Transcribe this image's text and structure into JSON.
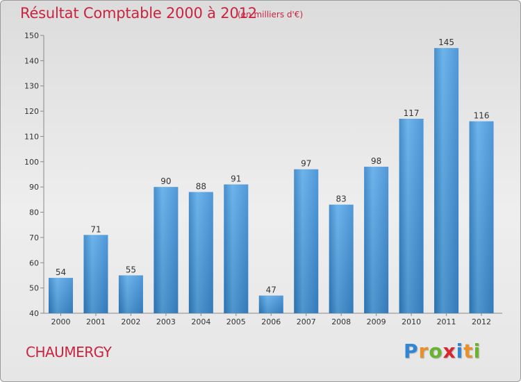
{
  "chart_data": {
    "type": "bar",
    "title": "Résultat Comptable 2000 à 2012",
    "subtitle": "(en milliers d'€)",
    "categories": [
      "2000",
      "2001",
      "2002",
      "2003",
      "2004",
      "2005",
      "2006",
      "2007",
      "2008",
      "2009",
      "2010",
      "2011",
      "2012"
    ],
    "values": [
      54,
      71,
      55,
      90,
      88,
      91,
      47,
      97,
      83,
      98,
      117,
      145,
      116
    ],
    "ylim": [
      40,
      150
    ],
    "yticks": [
      40,
      50,
      60,
      70,
      80,
      90,
      100,
      110,
      120,
      130,
      140,
      150
    ],
    "grid": false,
    "bar_color": "#3d8fd6"
  },
  "commune": "CHAUMERGY",
  "logo": {
    "letters": [
      {
        "char": "P",
        "color": "#2e86d4"
      },
      {
        "char": "r",
        "color": "#e8912a"
      },
      {
        "char": "o",
        "color": "#6ab32e"
      },
      {
        "char": "x",
        "color": "#d8262f"
      },
      {
        "char": "i",
        "color": "#2e86d4"
      },
      {
        "char": "t",
        "color": "#e8912a"
      },
      {
        "char": "i",
        "color": "#6ab32e"
      }
    ]
  }
}
